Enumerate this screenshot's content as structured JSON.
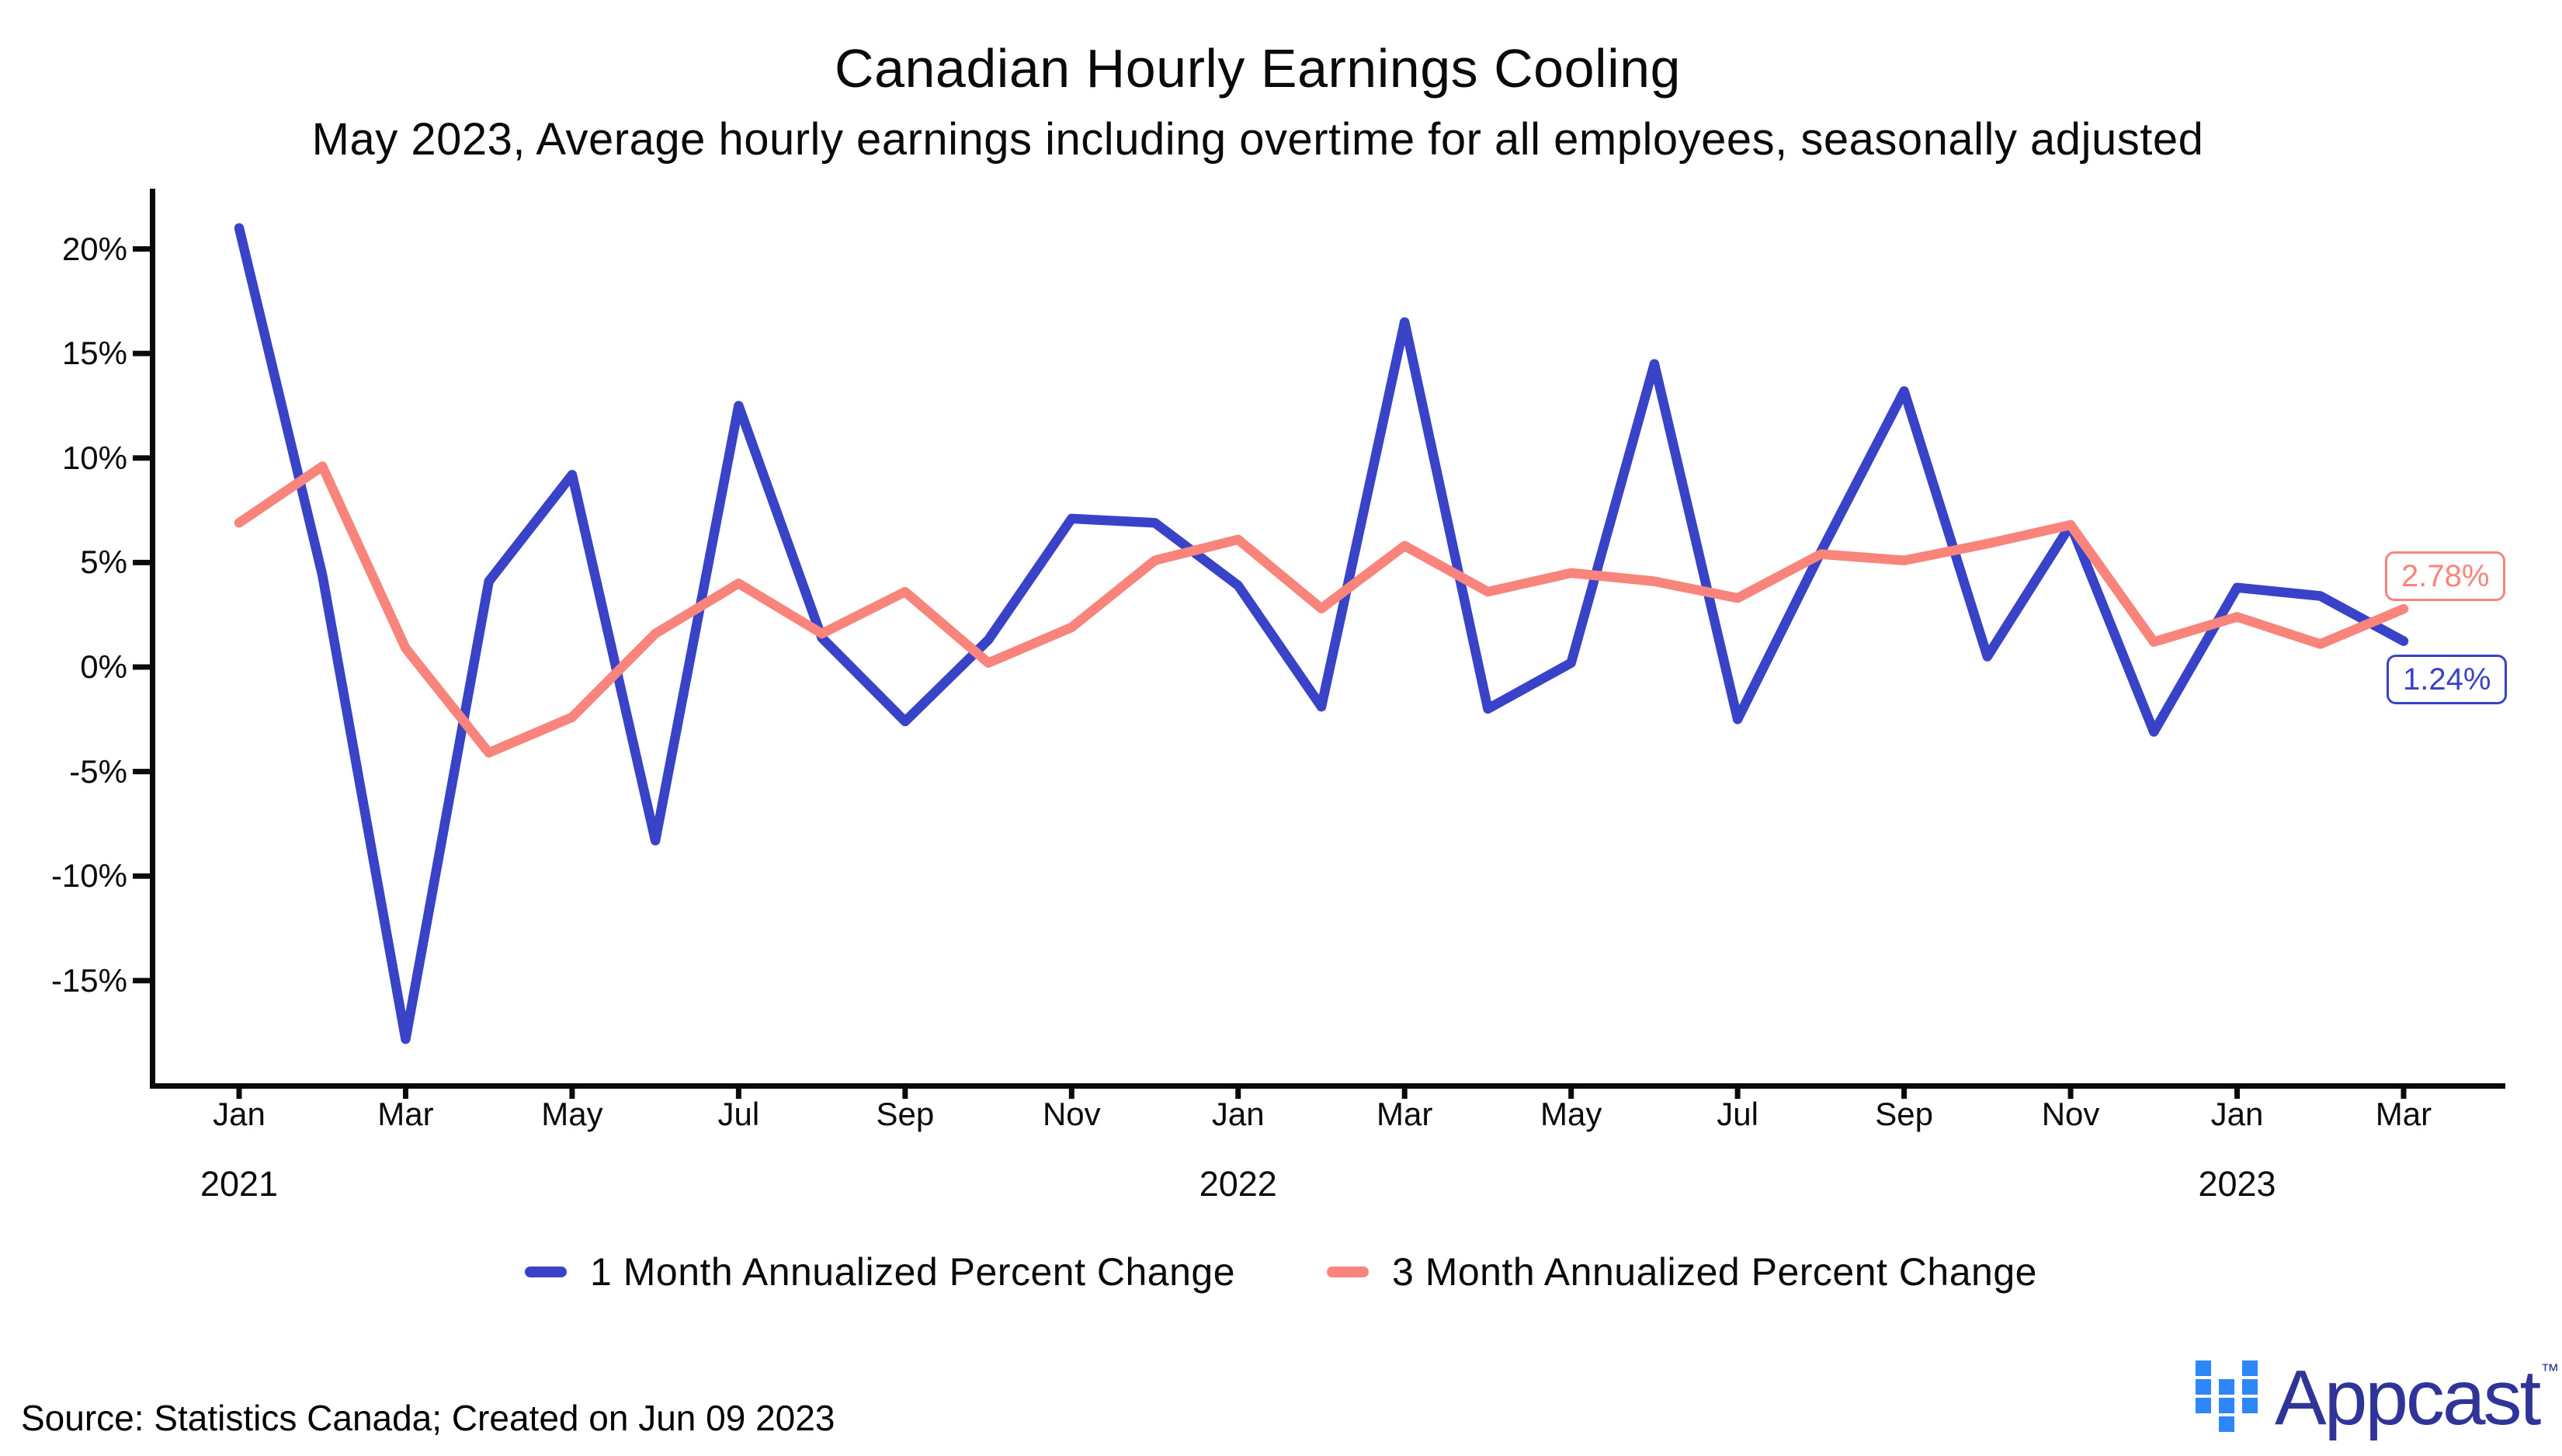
{
  "header": {
    "title": "Canadian Hourly Earnings Cooling",
    "subtitle": "May 2023, Average hourly earnings including overtime for all employees, seasonally adjusted"
  },
  "chart_data": {
    "type": "line",
    "title": "Canadian Hourly Earnings Cooling",
    "subtitle": "May 2023, Average hourly earnings including overtime for all employees, seasonally adjusted",
    "grid": false,
    "legend_position": "bottom",
    "ylim": [
      -20,
      23
    ],
    "y_ticks": [
      {
        "label": "20%",
        "value": 20
      },
      {
        "label": "15%",
        "value": 15
      },
      {
        "label": "10%",
        "value": 10
      },
      {
        "label": "5%",
        "value": 5
      },
      {
        "label": "0%",
        "value": 0
      },
      {
        "label": "-5%",
        "value": -5
      },
      {
        "label": "-10%",
        "value": -10
      },
      {
        "label": "-15%",
        "value": -15
      }
    ],
    "x_ticks": [
      {
        "label": "Jan",
        "month_index": 0
      },
      {
        "label": "Mar",
        "month_index": 2
      },
      {
        "label": "May",
        "month_index": 4
      },
      {
        "label": "Jul",
        "month_index": 6
      },
      {
        "label": "Sep",
        "month_index": 8
      },
      {
        "label": "Nov",
        "month_index": 10
      },
      {
        "label": "Jan",
        "month_index": 12
      },
      {
        "label": "Mar",
        "month_index": 14
      },
      {
        "label": "May",
        "month_index": 16
      },
      {
        "label": "Jul",
        "month_index": 18
      },
      {
        "label": "Sep",
        "month_index": 20
      },
      {
        "label": "Nov",
        "month_index": 22
      },
      {
        "label": "Jan",
        "month_index": 24
      },
      {
        "label": "Mar",
        "month_index": 26
      }
    ],
    "year_labels": [
      {
        "label": "2021",
        "month_index": 0
      },
      {
        "label": "2022",
        "month_index": 12
      },
      {
        "label": "2023",
        "month_index": 24
      }
    ],
    "x": [
      "Jan 2021",
      "Feb 2021",
      "Mar 2021",
      "Apr 2021",
      "May 2021",
      "Jun 2021",
      "Jul 2021",
      "Aug 2021",
      "Sep 2021",
      "Oct 2021",
      "Nov 2021",
      "Dec 2021",
      "Jan 2022",
      "Feb 2022",
      "Mar 2022",
      "Apr 2022",
      "May 2022",
      "Jun 2022",
      "Jul 2022",
      "Aug 2022",
      "Sep 2022",
      "Oct 2022",
      "Nov 2022",
      "Dec 2022",
      "Jan 2023",
      "Feb 2023",
      "Mar 2023"
    ],
    "series": [
      {
        "name": "1 Month Annualized Percent Change",
        "color": "#3943C8",
        "end_label": "1.24%",
        "values": [
          21.0,
          4.4,
          -17.8,
          4.1,
          9.2,
          -8.3,
          12.5,
          1.4,
          -2.6,
          1.3,
          7.1,
          6.9,
          3.9,
          -1.9,
          16.5,
          -2.0,
          0.2,
          14.5,
          -2.5,
          5.5,
          13.2,
          0.5,
          6.8,
          -3.1,
          3.8,
          3.4,
          1.24
        ]
      },
      {
        "name": "3 Month Annualized Percent Change",
        "color": "#F9847B",
        "end_label": "2.78%",
        "values": [
          6.9,
          9.6,
          0.9,
          -4.1,
          -2.4,
          1.6,
          4.0,
          1.6,
          3.6,
          0.2,
          1.9,
          5.1,
          6.1,
          2.8,
          5.8,
          3.6,
          4.5,
          4.1,
          3.3,
          5.4,
          5.1,
          5.9,
          6.8,
          1.2,
          2.4,
          1.1,
          2.78
        ]
      }
    ]
  },
  "footer": {
    "source": "Source: Statistics Canada; Created on Jun 09 2023",
    "logo_text": "Appcast",
    "logo_tm": "™"
  }
}
